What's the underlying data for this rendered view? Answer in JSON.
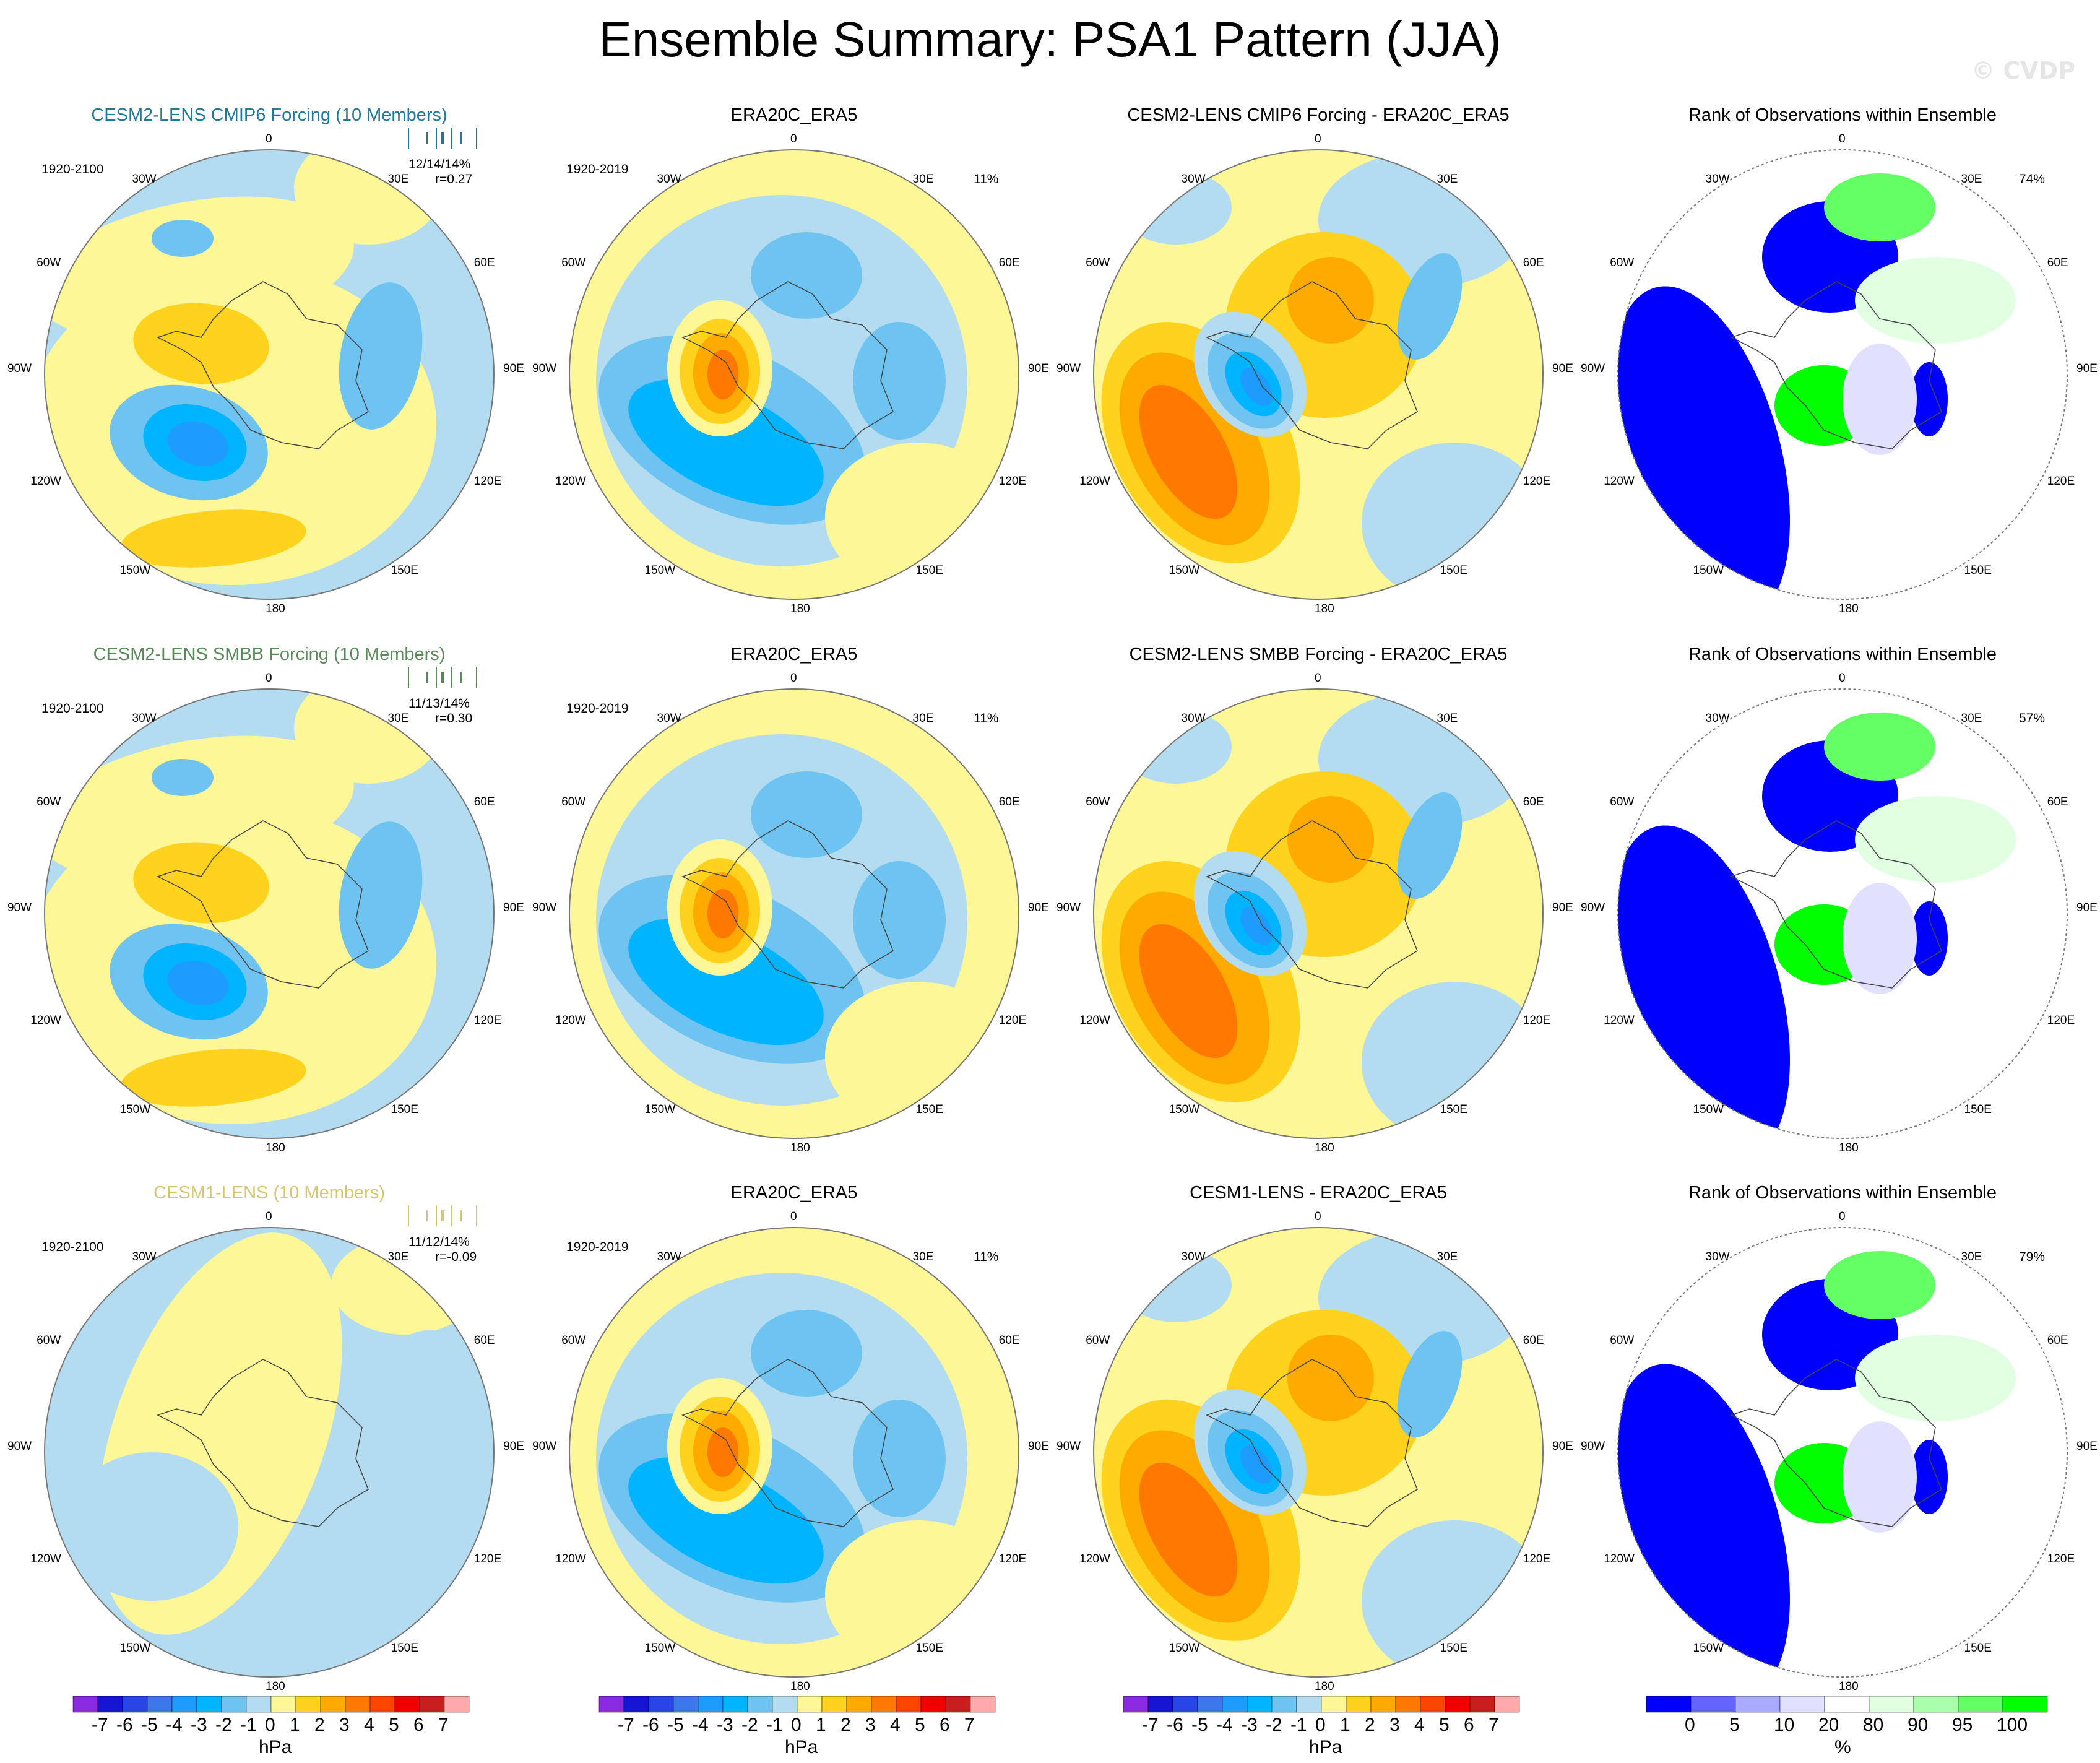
{
  "title": "Ensemble Summary: PSA1 Pattern (JJA)",
  "watermark": "© CVDP",
  "lon_labels": {
    "top": "0",
    "bottom": "180",
    "l30": "30W",
    "r30": "30E",
    "l60": "60W",
    "r60": "60E",
    "l90": "90W",
    "r90": "90E",
    "l120": "120W",
    "r120": "120E",
    "l150": "150W",
    "r150": "150E"
  },
  "colors": {
    "model_row1": "#1e7a9c",
    "model_row2": "#5a8a5a",
    "model_row3": "#d6c66e",
    "map_neg1": "#b4dcf0",
    "map_pos1": "#fdf797"
  },
  "rows": [
    {
      "model": {
        "title": "CESM2-LENS CMIP6 Forcing (10 Members)",
        "years": "1920-2100",
        "pct": "12/14/14%",
        "corr": "r=0.27"
      },
      "obs": {
        "title": "ERA20C_ERA5",
        "years": "1920-2019",
        "pct": "11%"
      },
      "diff": {
        "title": "CESM2-LENS CMIP6 Forcing - ERA20C_ERA5"
      },
      "rank": {
        "title": "Rank of Observations within Ensemble",
        "pct": "74%"
      }
    },
    {
      "model": {
        "title": "CESM2-LENS SMBB Forcing (10 Members)",
        "years": "1920-2100",
        "pct": "11/13/14%",
        "corr": "r=0.30"
      },
      "obs": {
        "title": "ERA20C_ERA5",
        "years": "1920-2019",
        "pct": "11%"
      },
      "diff": {
        "title": "CESM2-LENS SMBB Forcing - ERA20C_ERA5"
      },
      "rank": {
        "title": "Rank of Observations within Ensemble",
        "pct": "57%"
      }
    },
    {
      "model": {
        "title": "CESM1-LENS (10 Members)",
        "years": "1920-2100",
        "pct": "11/12/14%",
        "corr": "r=-0.09"
      },
      "obs": {
        "title": "ERA20C_ERA5",
        "years": "1920-2019",
        "pct": "11%"
      },
      "diff": {
        "title": "CESM1-LENS - ERA20C_ERA5"
      },
      "rank": {
        "title": "Rank of Observations within Ensemble",
        "pct": "79%"
      }
    }
  ],
  "chart_data": {
    "type": "heatmap",
    "projection": "south polar stereographic",
    "variable": "PSA1 Pattern (JJA)",
    "colorbars": [
      {
        "unit": "hPa",
        "levels": [
          "-7",
          "-6",
          "-5",
          "-4",
          "-3",
          "-2",
          "-1",
          "0",
          "1",
          "2",
          "3",
          "4",
          "5",
          "6",
          "7"
        ],
        "colors": [
          "#8a2be2",
          "#1414d2",
          "#2846e6",
          "#3c78eb",
          "#1e9bff",
          "#00b4ff",
          "#6ec3f0",
          "#b4dcf0",
          "#fdf797",
          "#ffd21e",
          "#ffaa00",
          "#ff7800",
          "#ff4600",
          "#f00000",
          "#c81e1e",
          "#ffaaaa"
        ]
      },
      {
        "unit": "%",
        "levels": [
          "0",
          "5",
          "10",
          "20",
          "80",
          "90",
          "95",
          "100"
        ],
        "colors": [
          "#0000ff",
          "#6464ff",
          "#aaaaff",
          "#e1e1ff",
          "#ffffff",
          "#e1ffe1",
          "#aaffaa",
          "#64ff64",
          "#00ff00"
        ]
      }
    ]
  }
}
